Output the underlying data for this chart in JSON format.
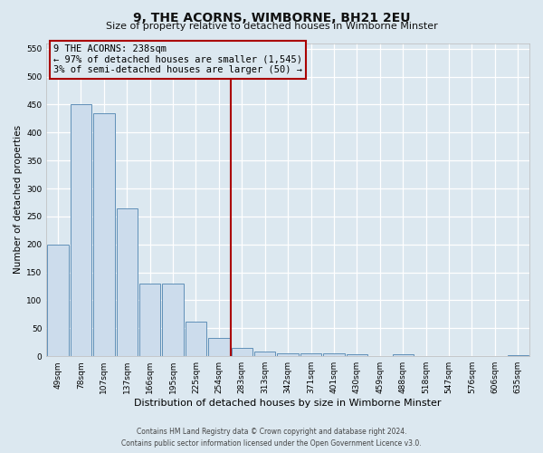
{
  "title": "9, THE ACORNS, WIMBORNE, BH21 2EU",
  "subtitle": "Size of property relative to detached houses in Wimborne Minster",
  "xlabel": "Distribution of detached houses by size in Wimborne Minster",
  "ylabel": "Number of detached properties",
  "footer_line1": "Contains HM Land Registry data © Crown copyright and database right 2024.",
  "footer_line2": "Contains public sector information licensed under the Open Government Licence v3.0.",
  "categories": [
    "49sqm",
    "78sqm",
    "107sqm",
    "137sqm",
    "166sqm",
    "195sqm",
    "225sqm",
    "254sqm",
    "283sqm",
    "313sqm",
    "342sqm",
    "371sqm",
    "401sqm",
    "430sqm",
    "459sqm",
    "488sqm",
    "518sqm",
    "547sqm",
    "576sqm",
    "606sqm",
    "635sqm"
  ],
  "values": [
    200,
    450,
    435,
    265,
    130,
    130,
    62,
    32,
    15,
    8,
    5,
    5,
    5,
    3,
    0,
    4,
    0,
    0,
    0,
    0,
    2
  ],
  "bar_color": "#ccdcec",
  "bar_edge_color": "#6090b8",
  "vline_x_index": 7.5,
  "vline_color": "#aa0000",
  "annotation_line1": "9 THE ACORNS: 238sqm",
  "annotation_line2": "← 97% of detached houses are smaller (1,545)",
  "annotation_line3": "3% of semi-detached houses are larger (50) →",
  "annotation_box_edgecolor": "#aa0000",
  "ylim": [
    0,
    560
  ],
  "yticks": [
    0,
    50,
    100,
    150,
    200,
    250,
    300,
    350,
    400,
    450,
    500,
    550
  ],
  "background_color": "#dce8f0",
  "plot_bg_color": "#dce8f0",
  "grid_color": "#ffffff",
  "title_fontsize": 10,
  "subtitle_fontsize": 8,
  "xlabel_fontsize": 8,
  "ylabel_fontsize": 7.5,
  "tick_fontsize": 6.5,
  "footer_fontsize": 5.5,
  "ann_fontsize": 7.5
}
